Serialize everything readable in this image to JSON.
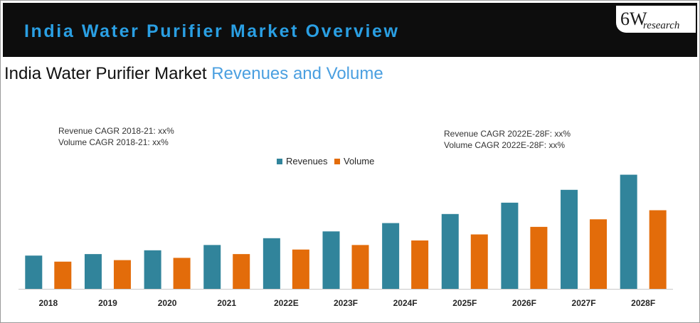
{
  "banner": {
    "title": "India Water Purifier Market Overview",
    "logo_main": "6W",
    "logo_sub": "research"
  },
  "heading": {
    "dark": "India Water Purifier  Market ",
    "accent": "Revenues and Volume"
  },
  "notes": {
    "left": [
      "Revenue CAGR 2018-21: xx%",
      "Volume CAGR 2018-21: xx%"
    ],
    "right": [
      "Revenue CAGR 2022E-28F: xx%",
      "Volume CAGR 2022E-28F: xx%"
    ]
  },
  "colors": {
    "revenues": "#31849b",
    "volume": "#e36c0a"
  },
  "chart_data": {
    "type": "bar",
    "title": "India Water Purifier  Market Revenues and Volume",
    "categories": [
      "2018",
      "2019",
      "2020",
      "2021",
      "2022E",
      "2023F",
      "2024F",
      "2025F",
      "2026F",
      "2027F",
      "2028F"
    ],
    "series": [
      {
        "name": "Revenues",
        "values": [
          44,
          46,
          51,
          58,
          67,
          76,
          87,
          99,
          114,
          131,
          151
        ]
      },
      {
        "name": "Volume",
        "values": [
          36,
          38,
          41,
          46,
          52,
          58,
          64,
          72,
          82,
          92,
          104
        ]
      }
    ],
    "ylim": [
      0,
      160
    ],
    "legend": "top-center",
    "grid": false,
    "xlabel": "",
    "ylabel": ""
  }
}
